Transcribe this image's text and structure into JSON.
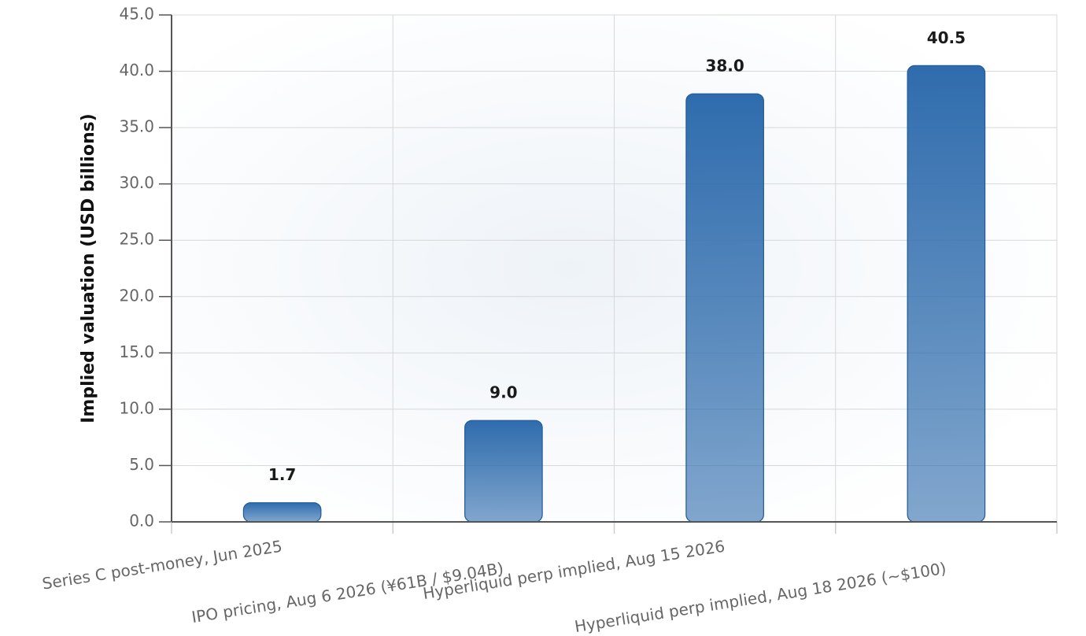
{
  "chart_data": {
    "type": "bar",
    "y_label": "Implied valuation (USD billions)",
    "categories": [
      "Series C post-money, Jun 2025",
      "IPO pricing, Aug 6 2026 (¥61B / $9.04B)",
      "Hyperliquid perp implied, Aug 15 2026",
      "Hyperliquid perp implied, Aug 18 2026 (~$100)"
    ],
    "values": [
      1.7,
      9.0,
      38.0,
      40.5
    ],
    "value_labels": [
      "1.7",
      "9.0",
      "38.0",
      "40.5"
    ],
    "color": "#3a75b3",
    "ylim": [
      0,
      45
    ],
    "yticks": [
      {
        "value": 0,
        "label": "0.0"
      },
      {
        "value": 5,
        "label": "5.0"
      },
      {
        "value": 10,
        "label": "10.0"
      },
      {
        "value": 15,
        "label": "15.0"
      },
      {
        "value": 20,
        "label": "20.0"
      },
      {
        "value": 25,
        "label": "25.0"
      },
      {
        "value": 30,
        "label": "30.0"
      },
      {
        "value": 35,
        "label": "35.0"
      },
      {
        "value": 40,
        "label": "40.0"
      },
      {
        "value": 45,
        "label": "45.0"
      }
    ],
    "grid": true
  }
}
